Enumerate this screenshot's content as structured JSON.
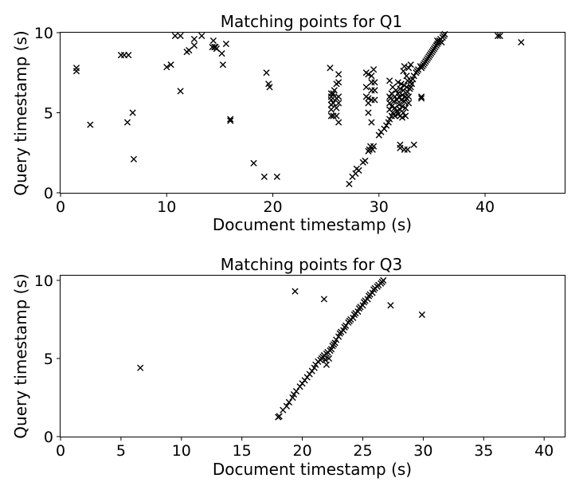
{
  "chart_data": [
    {
      "type": "scatter",
      "title": "Matching points for Q1",
      "xlabel": "Document timestamp (s)",
      "ylabel": "Query timestamp (s)",
      "xlim": [
        0,
        47.5
      ],
      "ylim": [
        0,
        10
      ],
      "xticks": [
        0,
        10,
        20,
        30,
        40
      ],
      "yticks": [
        0,
        5,
        10
      ],
      "marker": "x",
      "color": "#000000",
      "grid": false,
      "points": [
        [
          1.5,
          7.8
        ],
        [
          1.5,
          7.6
        ],
        [
          2.8,
          4.25
        ],
        [
          5.7,
          8.6
        ],
        [
          6.0,
          8.6
        ],
        [
          6.4,
          8.6
        ],
        [
          6.3,
          4.4
        ],
        [
          6.8,
          5.0
        ],
        [
          6.9,
          2.1
        ],
        [
          10.0,
          7.85
        ],
        [
          10.4,
          8.0
        ],
        [
          10.8,
          9.8
        ],
        [
          11.3,
          9.8
        ],
        [
          11.3,
          6.35
        ],
        [
          11.9,
          8.8
        ],
        [
          12.1,
          8.9
        ],
        [
          12.6,
          9.6
        ],
        [
          12.6,
          9.2
        ],
        [
          13.3,
          9.8
        ],
        [
          14.3,
          9.1
        ],
        [
          14.4,
          9.5
        ],
        [
          14.5,
          9.1
        ],
        [
          14.6,
          9.1
        ],
        [
          14.7,
          9.0
        ],
        [
          15.2,
          8.7
        ],
        [
          15.3,
          8.0
        ],
        [
          15.6,
          9.3
        ],
        [
          16.0,
          4.6
        ],
        [
          16.0,
          4.5
        ],
        [
          18.2,
          1.85
        ],
        [
          19.2,
          1.0
        ],
        [
          19.4,
          7.5
        ],
        [
          19.6,
          6.8
        ],
        [
          19.7,
          6.6
        ],
        [
          20.4,
          1.0
        ],
        [
          25.4,
          7.8
        ],
        [
          25.5,
          6.2
        ],
        [
          25.5,
          6.0
        ],
        [
          25.5,
          5.8
        ],
        [
          25.5,
          5.5
        ],
        [
          25.5,
          5.2
        ],
        [
          25.5,
          4.8
        ],
        [
          25.7,
          6.2
        ],
        [
          25.7,
          5.6
        ],
        [
          25.7,
          4.8
        ],
        [
          25.8,
          6.4
        ],
        [
          26.0,
          6.8
        ],
        [
          26.0,
          5.9
        ],
        [
          26.0,
          5.3
        ],
        [
          26.0,
          4.8
        ],
        [
          26.2,
          7.4
        ],
        [
          26.2,
          6.9
        ],
        [
          26.2,
          6.0
        ],
        [
          26.2,
          5.6
        ],
        [
          26.2,
          4.4
        ],
        [
          27.2,
          0.55
        ],
        [
          27.5,
          1.0
        ],
        [
          27.8,
          1.2
        ],
        [
          27.9,
          1.5
        ],
        [
          28.1,
          1.4
        ],
        [
          28.5,
          1.9
        ],
        [
          28.7,
          2.0
        ],
        [
          28.8,
          7.5
        ],
        [
          28.8,
          6.6
        ],
        [
          28.8,
          6.0
        ],
        [
          29.0,
          7.4
        ],
        [
          29.0,
          5.9
        ],
        [
          29.0,
          5.6
        ],
        [
          29.0,
          5.0
        ],
        [
          29.0,
          2.6
        ],
        [
          29.1,
          2.7
        ],
        [
          29.2,
          2.9
        ],
        [
          29.3,
          7.3
        ],
        [
          29.3,
          6.9
        ],
        [
          29.3,
          6.4
        ],
        [
          29.3,
          5.8
        ],
        [
          29.3,
          4.4
        ],
        [
          29.4,
          2.7
        ],
        [
          29.5,
          7.7
        ],
        [
          29.5,
          2.9
        ],
        [
          29.6,
          6.9
        ],
        [
          29.6,
          6.4
        ],
        [
          29.6,
          5.8
        ],
        [
          30.0,
          3.6
        ],
        [
          30.2,
          3.8
        ],
        [
          30.5,
          4.0
        ],
        [
          30.7,
          4.2
        ],
        [
          30.9,
          4.4
        ],
        [
          31.0,
          7.0
        ],
        [
          31.0,
          4.6
        ],
        [
          31.2,
          4.8
        ],
        [
          31.3,
          5.0
        ],
        [
          31.0,
          6.0
        ],
        [
          31.0,
          5.6
        ],
        [
          31.0,
          5.2
        ],
        [
          31.1,
          5.9
        ],
        [
          31.2,
          6.2
        ],
        [
          31.2,
          5.4
        ],
        [
          31.3,
          6.6
        ],
        [
          31.4,
          5.7
        ],
        [
          31.5,
          6.0
        ],
        [
          31.5,
          5.3
        ],
        [
          31.5,
          4.8
        ],
        [
          31.6,
          6.4
        ],
        [
          31.7,
          5.8
        ],
        [
          31.7,
          5.1
        ],
        [
          31.8,
          6.9
        ],
        [
          31.8,
          6.2
        ],
        [
          31.8,
          4.9
        ],
        [
          31.9,
          6.0
        ],
        [
          31.9,
          5.5
        ],
        [
          32.0,
          6.5
        ],
        [
          32.0,
          5.2
        ],
        [
          32.0,
          4.8
        ],
        [
          32.0,
          3.0
        ],
        [
          32.0,
          2.8
        ],
        [
          32.1,
          6.8
        ],
        [
          32.1,
          5.8
        ],
        [
          32.2,
          6.1
        ],
        [
          32.2,
          5.4
        ],
        [
          32.2,
          4.7
        ],
        [
          32.3,
          7.6
        ],
        [
          32.3,
          6.4
        ],
        [
          32.3,
          5.0
        ],
        [
          32.4,
          7.9
        ],
        [
          32.4,
          6.7
        ],
        [
          32.4,
          5.7
        ],
        [
          32.4,
          2.7
        ],
        [
          32.5,
          6.0
        ],
        [
          32.5,
          5.3
        ],
        [
          32.5,
          4.8
        ],
        [
          32.6,
          7.3
        ],
        [
          32.6,
          6.6
        ],
        [
          32.6,
          5.9
        ],
        [
          32.7,
          7.0
        ],
        [
          32.7,
          6.3
        ],
        [
          32.7,
          2.7
        ],
        [
          32.8,
          7.8
        ],
        [
          32.8,
          6.0
        ],
        [
          32.8,
          5.6
        ],
        [
          32.9,
          6.5
        ],
        [
          33.0,
          7.0
        ],
        [
          33.0,
          6.6
        ],
        [
          33.0,
          8.0
        ],
        [
          33.1,
          6.8
        ],
        [
          33.2,
          7.1
        ],
        [
          33.3,
          7.3
        ],
        [
          33.3,
          3.0
        ],
        [
          33.5,
          7.5
        ],
        [
          33.6,
          7.6
        ],
        [
          33.7,
          7.7
        ],
        [
          33.9,
          7.9
        ],
        [
          34.0,
          7.8
        ],
        [
          34.0,
          6.0
        ],
        [
          34.0,
          5.9
        ],
        [
          34.1,
          7.9
        ],
        [
          34.2,
          8.0
        ],
        [
          34.3,
          8.1
        ],
        [
          34.4,
          8.2
        ],
        [
          34.5,
          8.3
        ],
        [
          34.6,
          8.4
        ],
        [
          34.7,
          8.5
        ],
        [
          34.8,
          8.6
        ],
        [
          34.9,
          8.7
        ],
        [
          35.0,
          8.8
        ],
        [
          35.1,
          8.9
        ],
        [
          35.2,
          9.0
        ],
        [
          35.3,
          9.1
        ],
        [
          35.4,
          9.2
        ],
        [
          35.5,
          9.3
        ],
        [
          35.5,
          9.5
        ],
        [
          35.6,
          9.4
        ],
        [
          35.7,
          9.5
        ],
        [
          35.8,
          9.6
        ],
        [
          35.9,
          9.4
        ],
        [
          36.0,
          9.7
        ],
        [
          36.1,
          9.8
        ],
        [
          36.2,
          9.9
        ],
        [
          41.2,
          9.8
        ],
        [
          41.4,
          9.8
        ],
        [
          43.4,
          9.4
        ]
      ]
    },
    {
      "type": "scatter",
      "title": "Matching points for Q3",
      "xlabel": "Document timestamp (s)",
      "ylabel": "Query timestamp (s)",
      "xlim": [
        0,
        41.7
      ],
      "ylim": [
        0,
        10.3
      ],
      "xticks": [
        0,
        5,
        10,
        15,
        20,
        25,
        30,
        35,
        40
      ],
      "yticks": [
        0,
        5,
        10
      ],
      "marker": "x",
      "color": "#000000",
      "grid": false,
      "points": [
        [
          6.6,
          4.4
        ],
        [
          18.0,
          1.25
        ],
        [
          18.1,
          1.3
        ],
        [
          18.4,
          1.7
        ],
        [
          18.7,
          1.95
        ],
        [
          18.9,
          2.2
        ],
        [
          19.2,
          2.5
        ],
        [
          19.3,
          2.7
        ],
        [
          19.4,
          9.3
        ],
        [
          19.5,
          2.9
        ],
        [
          19.8,
          3.2
        ],
        [
          20.0,
          3.4
        ],
        [
          20.2,
          3.6
        ],
        [
          20.4,
          3.8
        ],
        [
          20.6,
          4.0
        ],
        [
          20.8,
          4.2
        ],
        [
          21.0,
          4.4
        ],
        [
          21.1,
          4.6
        ],
        [
          21.3,
          4.8
        ],
        [
          21.5,
          4.9
        ],
        [
          21.6,
          5.0
        ],
        [
          21.7,
          5.1
        ],
        [
          21.8,
          8.8
        ],
        [
          21.8,
          5.2
        ],
        [
          21.9,
          4.9
        ],
        [
          22.0,
          5.3
        ],
        [
          22.0,
          4.6
        ],
        [
          22.1,
          5.4
        ],
        [
          22.2,
          5.0
        ],
        [
          22.3,
          5.5
        ],
        [
          22.4,
          5.6
        ],
        [
          22.5,
          5.8
        ],
        [
          22.6,
          5.9
        ],
        [
          22.7,
          6.0
        ],
        [
          22.8,
          6.2
        ],
        [
          23.0,
          6.4
        ],
        [
          23.1,
          6.6
        ],
        [
          23.2,
          6.7
        ],
        [
          23.4,
          6.8
        ],
        [
          23.5,
          7.0
        ],
        [
          23.6,
          7.1
        ],
        [
          23.8,
          7.3
        ],
        [
          23.9,
          7.4
        ],
        [
          24.0,
          7.5
        ],
        [
          24.2,
          7.6
        ],
        [
          24.3,
          7.8
        ],
        [
          24.4,
          7.9
        ],
        [
          24.6,
          8.0
        ],
        [
          24.7,
          8.2
        ],
        [
          24.8,
          8.3
        ],
        [
          25.0,
          8.4
        ],
        [
          25.1,
          8.6
        ],
        [
          25.2,
          8.7
        ],
        [
          25.4,
          8.8
        ],
        [
          25.5,
          9.0
        ],
        [
          25.6,
          9.1
        ],
        [
          25.8,
          9.2
        ],
        [
          25.9,
          9.4
        ],
        [
          26.0,
          9.5
        ],
        [
          26.2,
          9.6
        ],
        [
          26.3,
          9.7
        ],
        [
          26.5,
          9.8
        ],
        [
          26.6,
          9.9
        ],
        [
          26.7,
          10.0
        ],
        [
          27.3,
          8.4
        ],
        [
          29.9,
          7.8
        ]
      ]
    }
  ]
}
